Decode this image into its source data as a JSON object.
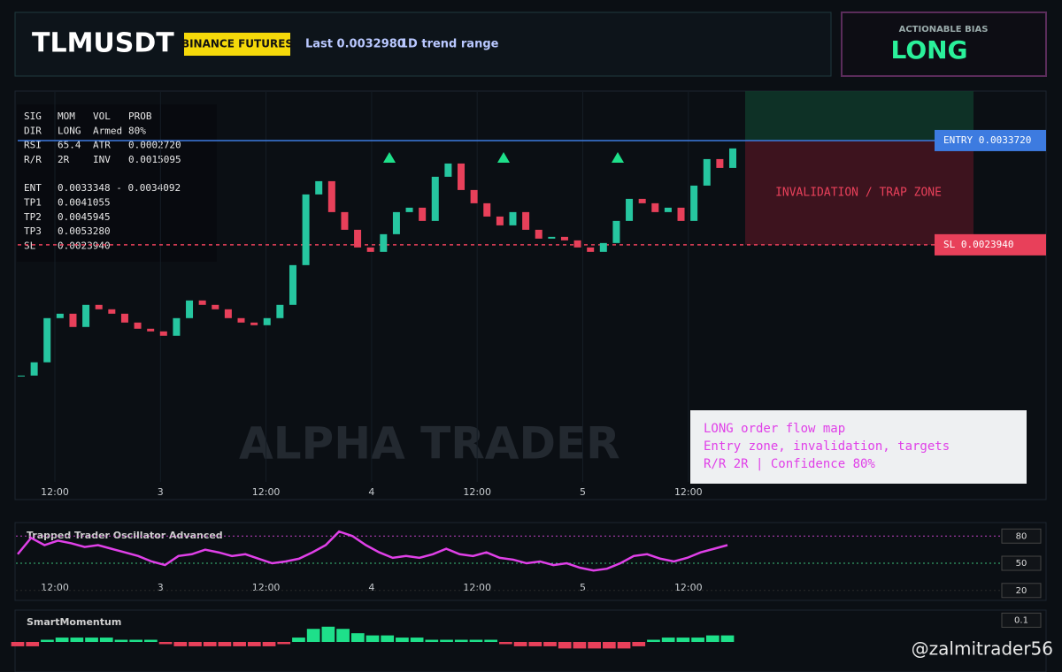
{
  "header": {
    "symbol": "TLMUSDT",
    "exchange": "BINANCE FUTURES",
    "last": "Last 0.0032980",
    "range": "1D trend range"
  },
  "bias": {
    "label": "ACTIONABLE BIAS",
    "value": "LONG"
  },
  "stats": {
    "rows": [
      [
        "SIG",
        "MOM",
        "VOL",
        "PROB"
      ],
      [
        "DIR",
        "LONG",
        "Armed",
        "80%"
      ],
      [
        "RSI",
        "65.4",
        "ATR",
        "0.0002720"
      ],
      [
        "R/R",
        "2R",
        "INV",
        "0.0015095"
      ],
      [
        "ENT",
        "0.0033348 - 0.0034092"
      ],
      [
        "TP1",
        "0.0041055"
      ],
      [
        "TP2",
        "0.0045945"
      ],
      [
        "TP3",
        "0.0053280"
      ],
      [
        "SL",
        "0.0023940"
      ]
    ]
  },
  "zone_label": "INVALIDATION / TRAP ZONE",
  "note": [
    "LONG order flow map",
    "Entry zone, invalidation, targets",
    "R/R 2R | Confidence 80%"
  ],
  "watermark": "ALPHA TRADER",
  "credit": "@zalmitrader56",
  "chart_data": [
    {
      "type": "candlestick",
      "ylim": [
        0.00017,
        0.003836
      ],
      "xlabels": [
        "12:00",
        "3",
        "12:00",
        "4",
        "12:00",
        "5",
        "12:00"
      ],
      "levels": [
        {
          "value": 0.003372,
          "label": "ENTRY 0.0033720",
          "color": "#3d7be0"
        },
        {
          "value": 0.002394,
          "label": "SL 0.0023940",
          "color": "#e8405a"
        }
      ],
      "series": [
        {
          "name": "Close",
          "color": "#26c6a0",
          "values": [
            0.0011674,
            0.0012917,
            0.0017061,
            0.0017476,
            0.0016232,
            0.0018304,
            0.001789,
            0.0017476,
            0.0016647,
            0.0016067,
            0.0015818,
            0.0015404,
            0.0017061,
            0.0018719,
            0.0018304,
            0.001789,
            0.0017061,
            0.0016647,
            0.0016398,
            0.0017061,
            0.0018304,
            0.0022034,
            0.0028664,
            0.0029908,
            0.0027007,
            0.0025349,
            0.0023692,
            0.0023277,
            0.0024935,
            0.0027007,
            0.0027421,
            0.0026178,
            0.0030322,
            0.0031565,
            0.0029079,
            0.0027836,
            0.0026592,
            0.0025764,
            0.0027007,
            0.0025349,
            0.002452,
            0.0024686,
            0.0024355,
            0.0023692,
            0.0023277,
            0.0024106,
            0.0026178,
            0.002825,
            0.0027836,
            0.0027007,
            0.0027421,
            0.0026178,
            0.0029493,
            0.003198,
            0.0031151,
            0.003298
          ]
        }
      ]
    },
    {
      "type": "line",
      "title": "Trapped Trader Oscillator Advanced",
      "ylim": [
        12,
        90
      ],
      "yticks": [
        80,
        50,
        20
      ],
      "series": [
        {
          "name": "TTO",
          "color": "#e040e8",
          "values": [
            60,
            78,
            70,
            75,
            72,
            68,
            70,
            66,
            62,
            58,
            52,
            48,
            58,
            60,
            65,
            62,
            58,
            60,
            55,
            50,
            52,
            55,
            62,
            70,
            85,
            80,
            70,
            62,
            56,
            58,
            56,
            60,
            66,
            60,
            58,
            62,
            56,
            54,
            50,
            52,
            48,
            50,
            45,
            42,
            44,
            50,
            58,
            60,
            55,
            52,
            56,
            62,
            66,
            70
          ]
        }
      ]
    },
    {
      "type": "bar",
      "title": "SmartMomentum",
      "ylim": [
        -0.13,
        0.13
      ],
      "yticks": [
        0.1
      ],
      "series": [
        {
          "name": "Momentum",
          "color": "#1ee08a",
          "values": [
            -0.02,
            -0.02,
            0.01,
            0.02,
            0.02,
            0.02,
            0.02,
            0.01,
            0.01,
            0.01,
            -0.01,
            -0.02,
            -0.02,
            -0.02,
            -0.02,
            -0.02,
            -0.02,
            -0.02,
            -0.01,
            0.02,
            0.06,
            0.07,
            0.06,
            0.04,
            0.03,
            0.03,
            0.02,
            0.02,
            0.01,
            0.01,
            0.01,
            0.01,
            0.01,
            -0.01,
            -0.02,
            -0.02,
            -0.02,
            -0.03,
            -0.03,
            -0.03,
            -0.03,
            -0.03,
            -0.02,
            0.01,
            0.02,
            0.02,
            0.02,
            0.03,
            0.03
          ]
        }
      ]
    }
  ]
}
